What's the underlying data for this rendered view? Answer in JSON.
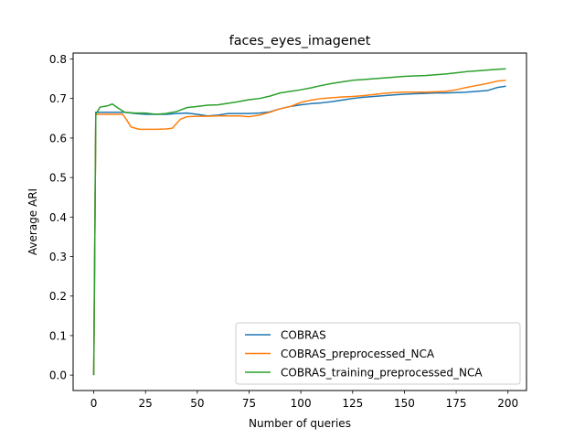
{
  "chart_data": {
    "type": "line",
    "title": "faces_eyes_imagenet",
    "xlabel": "Number of queries",
    "ylabel": "Average ARI",
    "xlim": [
      -9.95,
      208.95
    ],
    "ylim": [
      -0.039,
      0.815
    ],
    "xticks": [
      0,
      25,
      50,
      75,
      100,
      125,
      150,
      175,
      200
    ],
    "xtick_labels": [
      "0",
      "25",
      "50",
      "75",
      "100",
      "125",
      "150",
      "175",
      "200"
    ],
    "yticks": [
      0.0,
      0.1,
      0.2,
      0.3,
      0.4,
      0.5,
      0.6,
      0.7,
      0.8
    ],
    "ytick_labels": [
      "0.0",
      "0.1",
      "0.2",
      "0.3",
      "0.4",
      "0.5",
      "0.6",
      "0.7",
      "0.8"
    ],
    "grid": false,
    "legend_position": "lower-right",
    "series": [
      {
        "name": "COBRAS",
        "color": "#1f77b4",
        "x": [
          0,
          1,
          5,
          10,
          15,
          20,
          25,
          30,
          35,
          40,
          45,
          50,
          55,
          60,
          65,
          70,
          75,
          80,
          85,
          90,
          95,
          100,
          105,
          110,
          115,
          120,
          125,
          130,
          135,
          140,
          145,
          150,
          155,
          160,
          165,
          170,
          175,
          180,
          185,
          190,
          195,
          199
        ],
        "y": [
          0.0,
          0.665,
          0.665,
          0.665,
          0.665,
          0.662,
          0.66,
          0.66,
          0.66,
          0.662,
          0.663,
          0.66,
          0.656,
          0.658,
          0.662,
          0.662,
          0.662,
          0.663,
          0.666,
          0.674,
          0.68,
          0.684,
          0.687,
          0.689,
          0.692,
          0.696,
          0.7,
          0.703,
          0.705,
          0.707,
          0.709,
          0.711,
          0.712,
          0.713,
          0.714,
          0.714,
          0.715,
          0.716,
          0.718,
          0.72,
          0.728,
          0.731
        ]
      },
      {
        "name": "COBRAS_preprocessed_NCA",
        "color": "#ff7f0e",
        "x": [
          0,
          1,
          5,
          10,
          14,
          16,
          18,
          20,
          22,
          25,
          30,
          35,
          38,
          40,
          42,
          45,
          50,
          55,
          60,
          65,
          70,
          75,
          80,
          85,
          90,
          95,
          100,
          105,
          110,
          115,
          120,
          125,
          130,
          135,
          140,
          145,
          150,
          155,
          160,
          165,
          170,
          175,
          180,
          185,
          190,
          195,
          199
        ],
        "y": [
          0.0,
          0.66,
          0.66,
          0.66,
          0.66,
          0.645,
          0.628,
          0.625,
          0.622,
          0.622,
          0.622,
          0.623,
          0.625,
          0.637,
          0.648,
          0.654,
          0.655,
          0.655,
          0.656,
          0.656,
          0.656,
          0.654,
          0.658,
          0.665,
          0.674,
          0.68,
          0.69,
          0.696,
          0.7,
          0.702,
          0.704,
          0.705,
          0.707,
          0.71,
          0.713,
          0.715,
          0.716,
          0.716,
          0.716,
          0.717,
          0.718,
          0.722,
          0.728,
          0.733,
          0.738,
          0.744,
          0.746
        ]
      },
      {
        "name": "COBRAS_training_preprocessed_NCA",
        "color": "#2ca02c",
        "x": [
          0,
          1,
          3,
          5,
          7,
          9,
          12,
          15,
          20,
          25,
          30,
          35,
          40,
          45,
          50,
          55,
          60,
          65,
          70,
          75,
          80,
          85,
          90,
          95,
          100,
          105,
          110,
          115,
          120,
          125,
          130,
          135,
          140,
          145,
          150,
          155,
          160,
          165,
          170,
          175,
          180,
          185,
          190,
          195,
          199
        ],
        "y": [
          0.0,
          0.66,
          0.678,
          0.68,
          0.682,
          0.686,
          0.675,
          0.665,
          0.663,
          0.663,
          0.66,
          0.662,
          0.667,
          0.677,
          0.68,
          0.683,
          0.684,
          0.688,
          0.692,
          0.697,
          0.7,
          0.706,
          0.714,
          0.718,
          0.722,
          0.727,
          0.733,
          0.738,
          0.742,
          0.746,
          0.748,
          0.75,
          0.752,
          0.754,
          0.756,
          0.757,
          0.758,
          0.76,
          0.762,
          0.765,
          0.768,
          0.77,
          0.772,
          0.774,
          0.775
        ]
      }
    ]
  }
}
